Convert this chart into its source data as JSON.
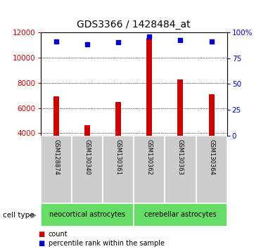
{
  "title": "GDS3366 / 1428484_at",
  "samples": [
    "GSM128874",
    "GSM130340",
    "GSM130361",
    "GSM130362",
    "GSM130363",
    "GSM130364"
  ],
  "counts": [
    6900,
    4650,
    6500,
    11550,
    8250,
    7100
  ],
  "percentile_yvals": [
    11300,
    11050,
    11200,
    11650,
    11400,
    11300
  ],
  "ylim_left": [
    3800,
    12000
  ],
  "ylim_right": [
    0,
    100
  ],
  "yticks_left": [
    4000,
    6000,
    8000,
    10000,
    12000
  ],
  "yticks_right": [
    0,
    25,
    50,
    75,
    100
  ],
  "group1_label": "neocortical astrocytes",
  "group2_label": "cerebellar astrocytes",
  "group_color": "#66dd66",
  "bar_color": "#cc0000",
  "dot_color": "#0000cc",
  "tick_color_left": "#cc0000",
  "tick_color_right": "#0000cc",
  "cell_type_label": "cell type",
  "legend_count": "count",
  "legend_percentile": "percentile rank within the sample",
  "bar_width": 0.18
}
